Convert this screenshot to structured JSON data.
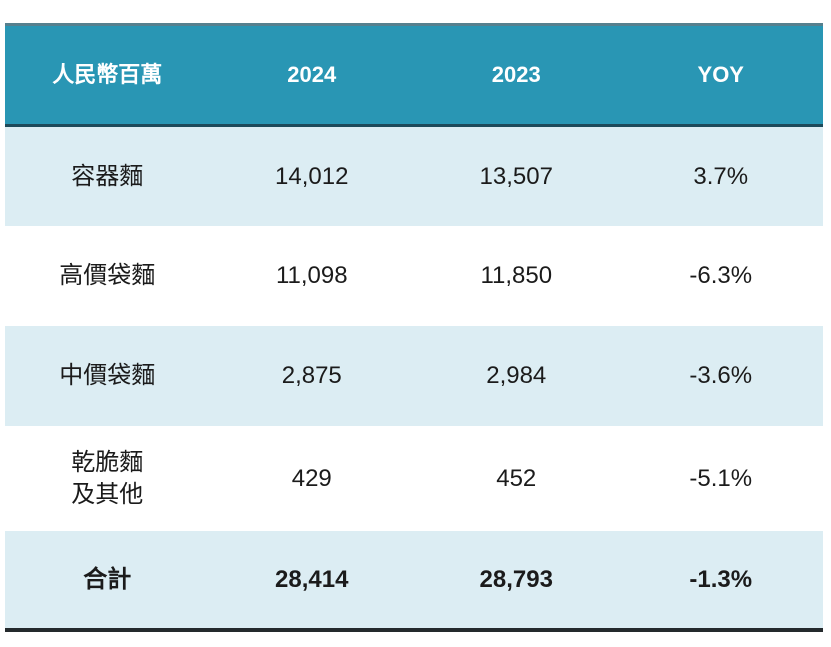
{
  "table": {
    "headers": [
      "人民幣百萬",
      "2024",
      "2023",
      "YOY"
    ],
    "rows": [
      {
        "cells": [
          "容器麵",
          "14,012",
          "13,507",
          "3.7%"
        ]
      },
      {
        "cells": [
          "高價袋麵",
          "11,098",
          "11,850",
          "-6.3%"
        ]
      },
      {
        "cells": [
          "中價袋麵",
          "2,875",
          "2,984",
          "-3.6%"
        ]
      },
      {
        "cells": [
          "乾脆麵\n及其他",
          "429",
          "452",
          "-5.1%"
        ]
      },
      {
        "cells": [
          "合計",
          "28,414",
          "28,793",
          "-1.3%"
        ]
      }
    ],
    "colors": {
      "header_bg": "#2996b4",
      "header_text": "#ffffff",
      "alt_row_bg": "#dcedf3",
      "header_top_border": "#56808e",
      "header_bottom_border": "#1d4a5a",
      "table_bottom_border": "#242a2d",
      "body_text": "#1b1b1b"
    }
  },
  "chart_data": {
    "type": "table",
    "title": "",
    "unit_label": "人民幣百萬",
    "columns": [
      "人民幣百萬",
      "2024",
      "2023",
      "YOY"
    ],
    "categories": [
      "容器麵",
      "高價袋麵",
      "中價袋麵",
      "乾脆麵及其他",
      "合計"
    ],
    "series": [
      {
        "name": "2024",
        "values": [
          14012,
          11098,
          2875,
          429,
          28414
        ]
      },
      {
        "name": "2023",
        "values": [
          13507,
          11850,
          2984,
          452,
          28793
        ]
      },
      {
        "name": "YOY",
        "values": [
          "3.7%",
          "-6.3%",
          "-3.6%",
          "-5.1%",
          "-1.3%"
        ]
      }
    ],
    "layout_hints": {
      "total_row": "合計",
      "alternating_row_shading": true,
      "header_style": "teal-band"
    }
  }
}
